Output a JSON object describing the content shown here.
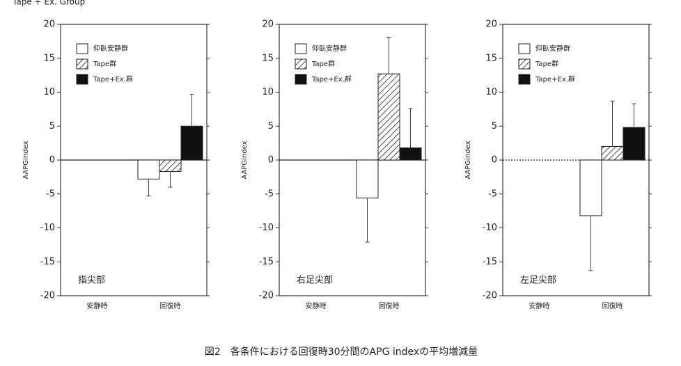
{
  "top_text": "Tape + Ex. Group",
  "caption": "図2　各条件における回復時30分間のAPG indexの平均増減量",
  "chart_data": [
    {
      "type": "bar",
      "ylabel": "AAPGindex",
      "annotation": "指尖部",
      "legend": "upper left",
      "zero_line": "solid",
      "categories": [
        "安静時",
        "回復時"
      ],
      "ylim": [
        -20,
        20
      ],
      "yticks": [
        -20,
        -15,
        -10,
        -5,
        0,
        5,
        10,
        15,
        20
      ],
      "series": [
        {
          "name": "仰臥安静群",
          "color": "#ffffff",
          "pattern": "none",
          "values": [
            null,
            -2.8
          ],
          "errors": [
            null,
            2.5
          ]
        },
        {
          "name": "Tape群",
          "color": "#ffffff",
          "pattern": "hatch",
          "values": [
            null,
            -1.7
          ],
          "errors": [
            null,
            2.3
          ]
        },
        {
          "name": "Tape+Ex.群",
          "color": "#111111",
          "pattern": "none",
          "values": [
            null,
            5.0
          ],
          "errors": [
            null,
            4.7
          ]
        }
      ]
    },
    {
      "type": "bar",
      "ylabel": "AAPGindex",
      "annotation": "右足尖部",
      "legend": "upper left",
      "zero_line": "solid",
      "categories": [
        "安静時",
        "回復時"
      ],
      "ylim": [
        -20,
        20
      ],
      "yticks": [
        -20,
        -15,
        -10,
        -5,
        0,
        5,
        10,
        15,
        20
      ],
      "series": [
        {
          "name": "仰臥安静群",
          "color": "#ffffff",
          "pattern": "none",
          "values": [
            null,
            -5.6
          ],
          "errors": [
            null,
            6.5
          ]
        },
        {
          "name": "Tape群",
          "color": "#ffffff",
          "pattern": "hatch",
          "values": [
            null,
            12.7
          ],
          "errors": [
            null,
            5.4
          ]
        },
        {
          "name": "Tape+Ex.群",
          "color": "#111111",
          "pattern": "none",
          "values": [
            null,
            1.8
          ],
          "errors": [
            null,
            5.8
          ]
        }
      ]
    },
    {
      "type": "bar",
      "ylabel": "AAPGindex",
      "annotation": "左足尖部",
      "legend": "upper left",
      "zero_line": "dotted",
      "categories": [
        "安静時",
        "回復時"
      ],
      "ylim": [
        -20,
        20
      ],
      "yticks": [
        -20,
        -15,
        -10,
        -5,
        0,
        5,
        10,
        15,
        20
      ],
      "series": [
        {
          "name": "仰臥安静群",
          "color": "#ffffff",
          "pattern": "none",
          "values": [
            null,
            -8.2
          ],
          "errors": [
            null,
            8.1
          ]
        },
        {
          "name": "Tape群",
          "color": "#ffffff",
          "pattern": "hatch",
          "values": [
            null,
            2.0
          ],
          "errors": [
            null,
            6.7
          ]
        },
        {
          "name": "Tape+Ex.群",
          "color": "#111111",
          "pattern": "none",
          "values": [
            null,
            4.8
          ],
          "errors": [
            null,
            3.5
          ]
        }
      ]
    }
  ]
}
